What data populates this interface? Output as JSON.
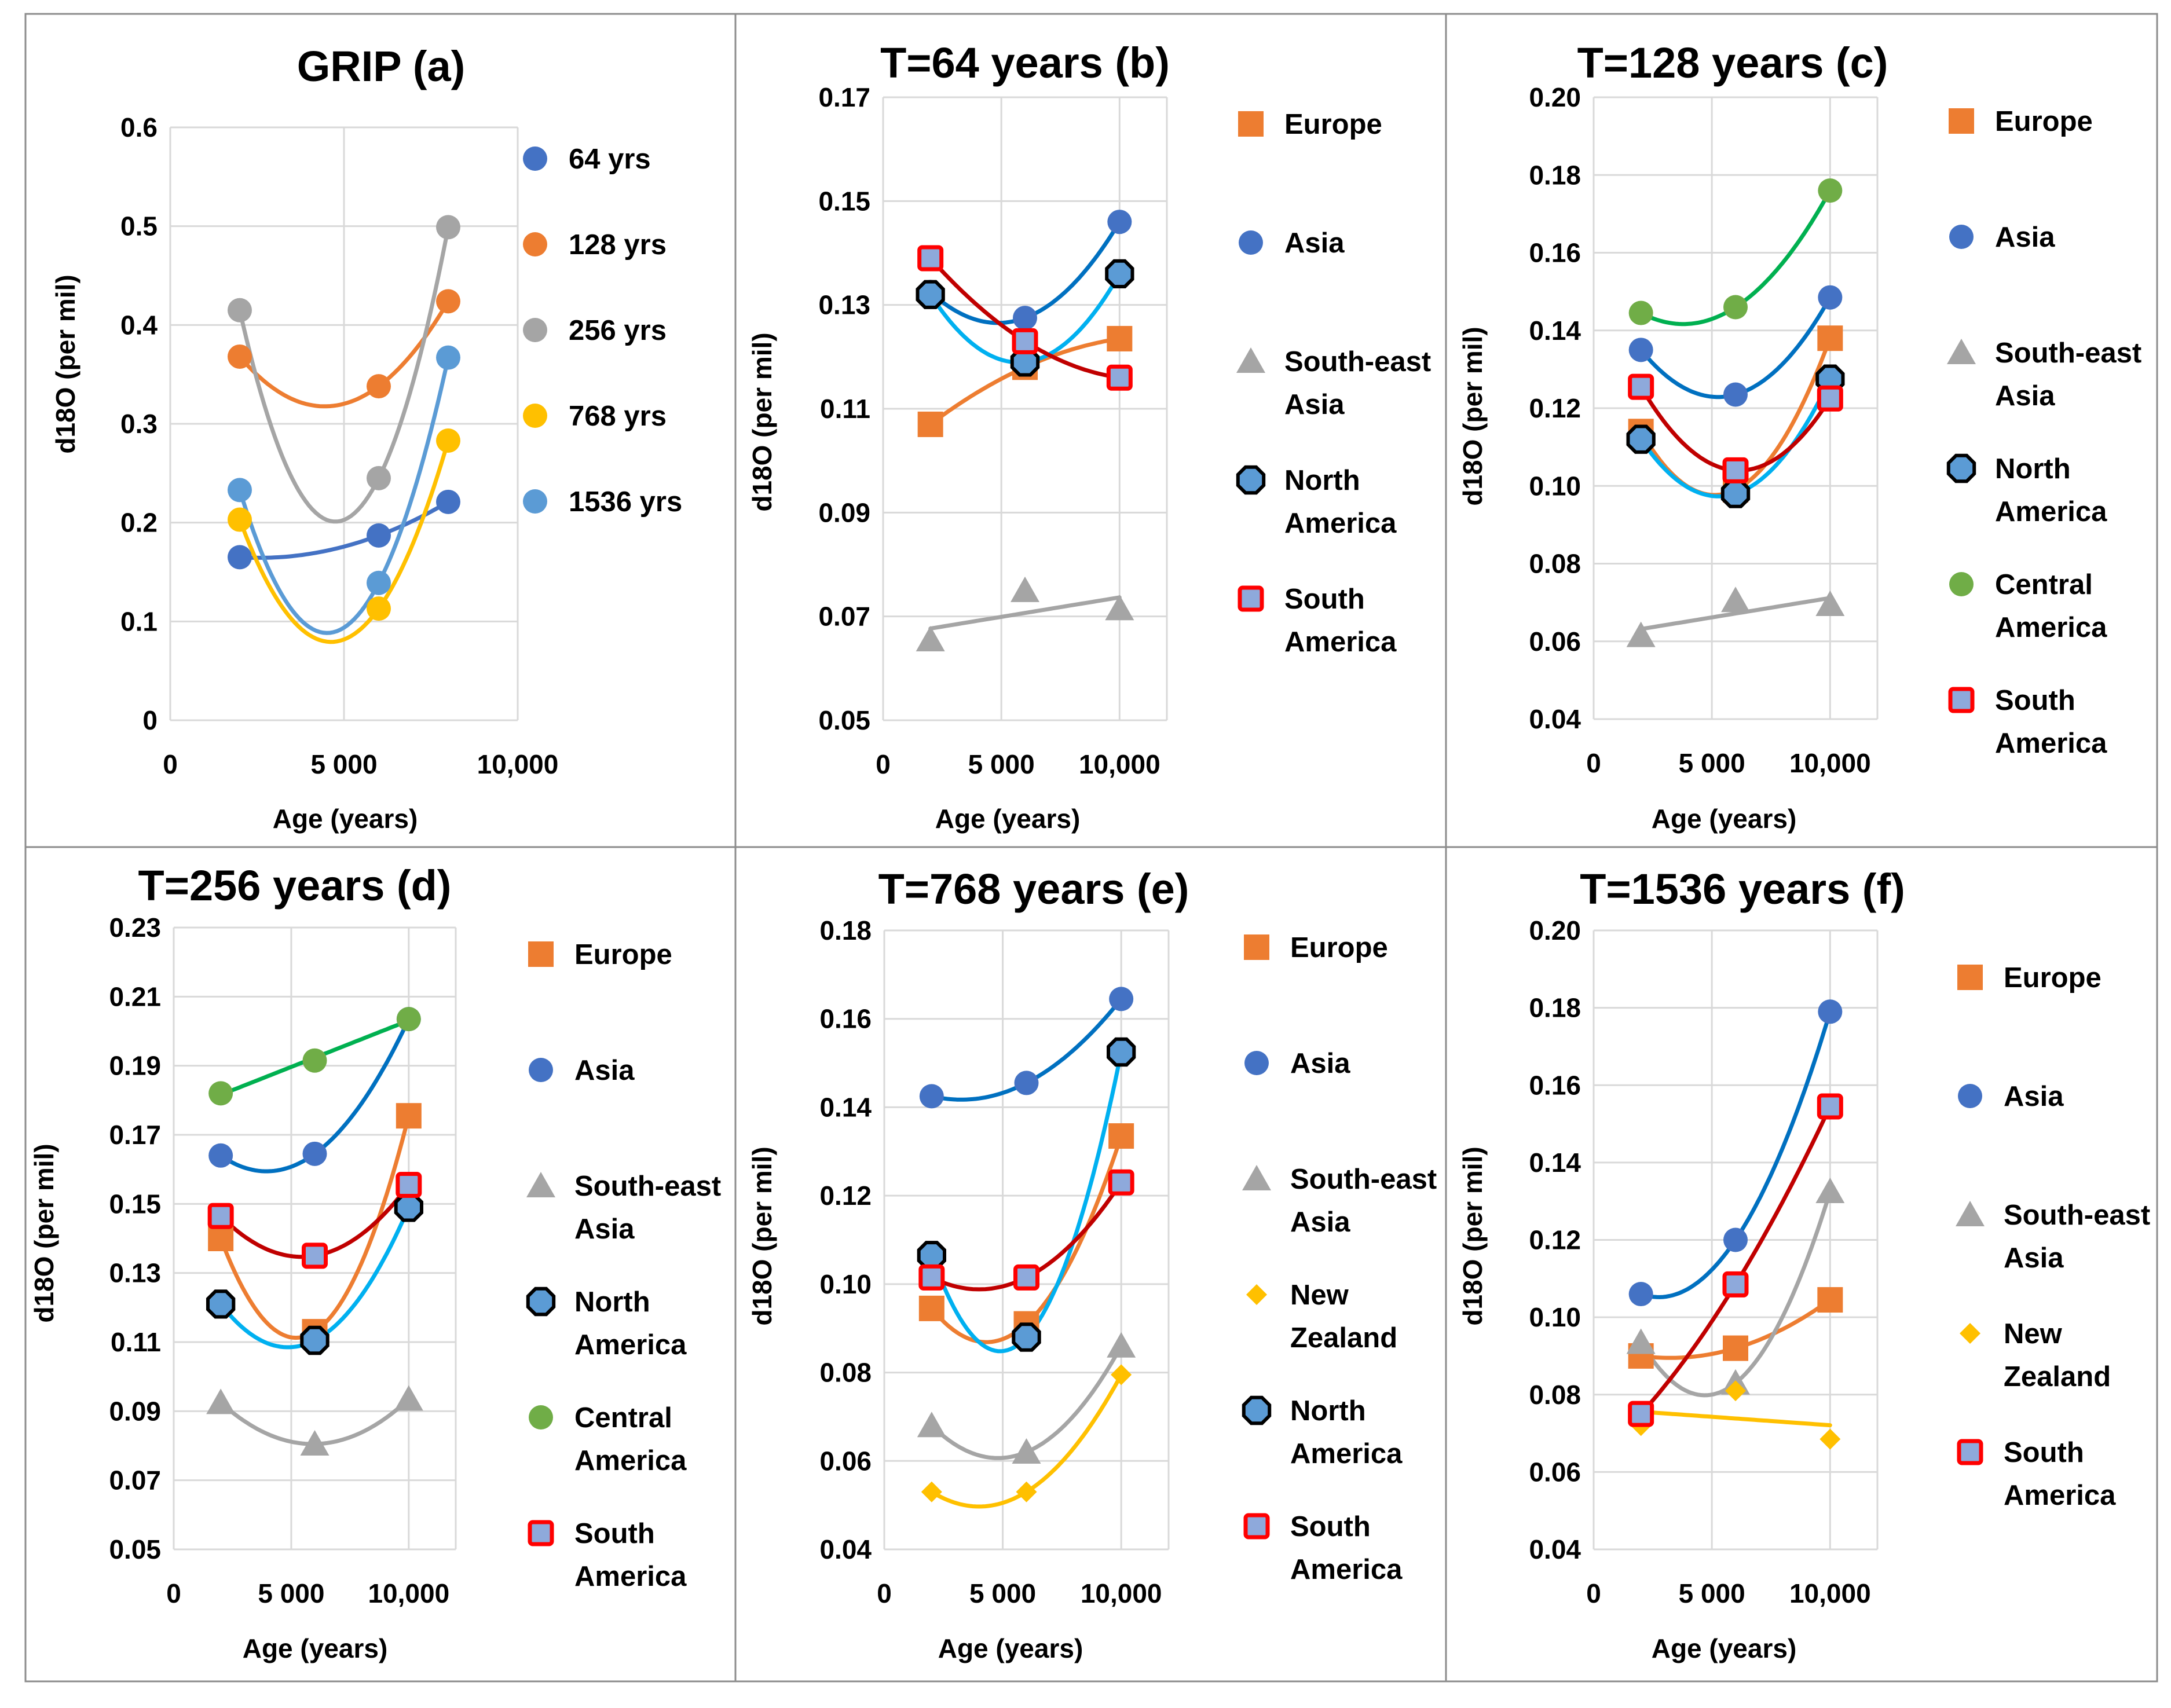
{
  "figure": {
    "colors": {
      "europe": "#ED7D31",
      "asia": "#4472C4",
      "southeast_asia": "#A5A5A5",
      "north_america_fill": "#5B9BD5",
      "north_america_edge": "#000000",
      "central_america": "#70AD47",
      "south_america_fill": "#8EA9DB",
      "south_america_edge": "#FF0000",
      "new_zealand": "#FFC000",
      "grip_64": "#4472C4",
      "grip_128": "#ED7D31",
      "grip_256": "#A5A5A5",
      "grip_768": "#FFC000",
      "grip_1536": "#5B9BD5",
      "trend_europe": "#ED7D31",
      "trend_asia": "#0070C0",
      "trend_sea": "#A5A5A5",
      "trend_na": "#00B0F0",
      "trend_ca": "#00B050",
      "trend_sa": "#C00000",
      "trend_nz": "#FFC000",
      "grid": "#D9D9D9",
      "border": "#8C8C8C"
    }
  },
  "chart_data": [
    {
      "id": "a",
      "type": "scatter",
      "title": "GRIP (a)",
      "xlabel": "Age (years)",
      "ylabel": "d18O (per mil)",
      "xlim": [
        0,
        10000
      ],
      "ylim": [
        0,
        0.6
      ],
      "xticks": [
        0,
        5000,
        10000
      ],
      "xtick_labels": [
        "0",
        "5 000",
        "10,000"
      ],
      "yticks": [
        0,
        0.1,
        0.2,
        0.3,
        0.4,
        0.5,
        0.6
      ],
      "ytick_labels": [
        "0",
        "0.1",
        "0.2",
        "0.3",
        "0.4",
        "0.5",
        "0.6"
      ],
      "series": [
        {
          "name": "64 yrs",
          "marker": "circle",
          "color": "#4472C4",
          "x": [
            2000,
            6000,
            8000
          ],
          "y": [
            0.165,
            0.187,
            0.221
          ],
          "trend": "poly2",
          "trend_color": "#4472C4"
        },
        {
          "name": "128 yrs",
          "marker": "circle",
          "color": "#ED7D31",
          "x": [
            2000,
            6000,
            8000
          ],
          "y": [
            0.368,
            0.338,
            0.424
          ],
          "trend": "poly2",
          "trend_color": "#ED7D31"
        },
        {
          "name": "256 yrs",
          "marker": "circle",
          "color": "#A5A5A5",
          "x": [
            2000,
            6000,
            8000
          ],
          "y": [
            0.415,
            0.245,
            0.499
          ],
          "trend": "poly2",
          "trend_color": "#A5A5A5"
        },
        {
          "name": "768 yrs",
          "marker": "circle",
          "color": "#FFC000",
          "x": [
            2000,
            6000,
            8000
          ],
          "y": [
            0.203,
            0.113,
            0.283
          ],
          "trend": "poly2",
          "trend_color": "#FFC000"
        },
        {
          "name": "1536 yrs",
          "marker": "circle",
          "color": "#5B9BD5",
          "x": [
            2000,
            6000,
            8000
          ],
          "y": [
            0.233,
            0.139,
            0.367
          ],
          "trend": "poly2",
          "trend_color": "#5B9BD5"
        }
      ]
    },
    {
      "id": "b",
      "type": "scatter",
      "title": "T=64 years (b)",
      "xlabel": "Age (years)",
      "ylabel": "d18O (per mil)",
      "xlim": [
        0,
        12000
      ],
      "ylim": [
        0.05,
        0.17
      ],
      "xticks": [
        0,
        5000,
        10000
      ],
      "xtick_labels": [
        "0",
        "5 000",
        "10,000"
      ],
      "yticks": [
        0.05,
        0.07,
        0.09,
        0.11,
        0.13,
        0.15,
        0.17
      ],
      "ytick_labels": [
        "0.05",
        "0.07",
        "0.09",
        "0.11",
        "0.13",
        "0.15",
        "0.17"
      ],
      "series": [
        {
          "name": "Europe",
          "marker": "square",
          "color": "#ED7D31",
          "x": [
            2000,
            6000,
            10000
          ],
          "y": [
            0.107,
            0.118,
            0.1235
          ],
          "trend": "poly2",
          "trend_color": "#ED7D31"
        },
        {
          "name": "Asia",
          "marker": "circle",
          "color": "#4472C4",
          "x": [
            2000,
            6000,
            10000
          ],
          "y": [
            0.1325,
            0.1275,
            0.146
          ],
          "trend": "poly2",
          "trend_color": "#0070C0"
        },
        {
          "name": "South-east Asia",
          "marker": "triangle",
          "color": "#A5A5A5",
          "x": [
            2000,
            6000,
            10000
          ],
          "y": [
            0.0655,
            0.075,
            0.0715
          ],
          "trend": "linear",
          "trend_color": "#A5A5A5"
        },
        {
          "name": "North America",
          "marker": "octagon",
          "color": "#5B9BD5",
          "x": [
            2000,
            6000,
            10000
          ],
          "y": [
            0.132,
            0.119,
            0.136
          ],
          "trend": "poly2",
          "trend_color": "#00B0F0"
        },
        {
          "name": "South America",
          "marker": "squareoutline",
          "color": "#8EA9DB",
          "x": [
            2000,
            6000,
            10000
          ],
          "y": [
            0.139,
            0.123,
            0.116
          ],
          "trend": "poly2",
          "trend_color": "#C00000"
        }
      ]
    },
    {
      "id": "c",
      "type": "scatter",
      "title": "T=128 years (c)",
      "xlabel": "Age (years)",
      "ylabel": "d18O (per mil)",
      "xlim": [
        0,
        12000
      ],
      "ylim": [
        0.04,
        0.2
      ],
      "xticks": [
        0,
        5000,
        10000
      ],
      "xtick_labels": [
        "0",
        "5 000",
        "10,000"
      ],
      "yticks": [
        0.04,
        0.06,
        0.08,
        0.1,
        0.12,
        0.14,
        0.16,
        0.18,
        0.2
      ],
      "ytick_labels": [
        "0.04",
        "0.06",
        "0.08",
        "0.10",
        "0.12",
        "0.14",
        "0.16",
        "0.18",
        "0.20"
      ],
      "series": [
        {
          "name": "Europe",
          "marker": "square",
          "color": "#ED7D31",
          "x": [
            2000,
            6000,
            10000
          ],
          "y": [
            0.114,
            0.099,
            0.138
          ],
          "trend": "poly2",
          "trend_color": "#ED7D31"
        },
        {
          "name": "Asia",
          "marker": "circle",
          "color": "#4472C4",
          "x": [
            2000,
            6000,
            10000
          ],
          "y": [
            0.135,
            0.1235,
            0.1485
          ],
          "trend": "poly2",
          "trend_color": "#0070C0"
        },
        {
          "name": "South-east Asia",
          "marker": "triangle",
          "color": "#A5A5A5",
          "x": [
            2000,
            6000,
            10000
          ],
          "y": [
            0.0615,
            0.0705,
            0.0695
          ],
          "trend": "linear",
          "trend_color": "#A5A5A5"
        },
        {
          "name": "North America",
          "marker": "octagon",
          "color": "#5B9BD5",
          "x": [
            2000,
            6000,
            10000
          ],
          "y": [
            0.112,
            0.098,
            0.1275
          ],
          "trend": "poly2",
          "trend_color": "#00B0F0"
        },
        {
          "name": "Central America",
          "marker": "circle",
          "color": "#70AD47",
          "x": [
            2000,
            6000,
            10000
          ],
          "y": [
            0.1445,
            0.146,
            0.176
          ],
          "trend": "poly2",
          "trend_color": "#00B050"
        },
        {
          "name": "South America",
          "marker": "squareoutline",
          "color": "#8EA9DB",
          "x": [
            2000,
            6000,
            10000
          ],
          "y": [
            0.1255,
            0.104,
            0.1225
          ],
          "trend": "poly2",
          "trend_color": "#C00000"
        }
      ]
    },
    {
      "id": "d",
      "type": "scatter",
      "title": "T=256 years (d)",
      "xlabel": "Age (years)",
      "ylabel": "d18O (per mil)",
      "xlim": [
        0,
        12000
      ],
      "ylim": [
        0.05,
        0.23
      ],
      "xticks": [
        0,
        5000,
        10000
      ],
      "xtick_labels": [
        "0",
        "5 000",
        "10,000"
      ],
      "yticks": [
        0.05,
        0.07,
        0.09,
        0.11,
        0.13,
        0.15,
        0.17,
        0.19,
        0.21,
        0.23
      ],
      "ytick_labels": [
        "0.05",
        "0.07",
        "0.09",
        "0.11",
        "0.13",
        "0.15",
        "0.17",
        "0.19",
        "0.21",
        "0.23"
      ],
      "series": [
        {
          "name": "Europe",
          "marker": "square",
          "color": "#ED7D31",
          "x": [
            2000,
            6000,
            10000
          ],
          "y": [
            0.14,
            0.113,
            0.1755
          ],
          "trend": "poly2",
          "trend_color": "#ED7D31"
        },
        {
          "name": "Asia",
          "marker": "circle",
          "color": "#4472C4",
          "x": [
            2000,
            6000,
            10000
          ],
          "y": [
            0.164,
            0.1645,
            0.2035
          ],
          "trend": "poly2",
          "trend_color": "#0070C0"
        },
        {
          "name": "South-east Asia",
          "marker": "triangle",
          "color": "#A5A5A5",
          "x": [
            2000,
            6000,
            10000
          ],
          "y": [
            0.0925,
            0.0805,
            0.0935
          ],
          "trend": "poly2",
          "trend_color": "#A5A5A5"
        },
        {
          "name": "North America",
          "marker": "octagon",
          "color": "#5B9BD5",
          "x": [
            2000,
            6000,
            10000
          ],
          "y": [
            0.121,
            0.1105,
            0.149
          ],
          "trend": "poly2",
          "trend_color": "#00B0F0"
        },
        {
          "name": "Central America",
          "marker": "circle",
          "color": "#70AD47",
          "x": [
            2000,
            6000,
            10000
          ],
          "y": [
            0.182,
            0.1915,
            0.2035
          ],
          "trend": "linear",
          "trend_color": "#00B050"
        },
        {
          "name": "South America",
          "marker": "squareoutline",
          "color": "#8EA9DB",
          "x": [
            2000,
            6000,
            10000
          ],
          "y": [
            0.1465,
            0.135,
            0.1555
          ],
          "trend": "poly2",
          "trend_color": "#C00000"
        }
      ]
    },
    {
      "id": "e",
      "type": "scatter",
      "title": "T=768 years (e)",
      "xlabel": "Age (years)",
      "ylabel": "d18O (per mil)",
      "xlim": [
        0,
        12000
      ],
      "ylim": [
        0.04,
        0.18
      ],
      "xticks": [
        0,
        5000,
        10000
      ],
      "xtick_labels": [
        "0",
        "5 000",
        "10,000"
      ],
      "yticks": [
        0.04,
        0.06,
        0.08,
        0.1,
        0.12,
        0.14,
        0.16,
        0.18
      ],
      "ytick_labels": [
        "0.04",
        "0.06",
        "0.08",
        "0.10",
        "0.12",
        "0.14",
        "0.16",
        "0.18"
      ],
      "series": [
        {
          "name": "Europe",
          "marker": "square",
          "color": "#ED7D31",
          "x": [
            2000,
            6000,
            10000
          ],
          "y": [
            0.0945,
            0.091,
            0.1335
          ],
          "trend": "poly2",
          "trend_color": "#ED7D31"
        },
        {
          "name": "Asia",
          "marker": "circle",
          "color": "#4472C4",
          "x": [
            2000,
            6000,
            10000
          ],
          "y": [
            0.1425,
            0.1455,
            0.1645
          ],
          "trend": "poly2",
          "trend_color": "#0070C0"
        },
        {
          "name": "South-east Asia",
          "marker": "triangle",
          "color": "#A5A5A5",
          "x": [
            2000,
            6000,
            10000
          ],
          "y": [
            0.068,
            0.062,
            0.086
          ],
          "trend": "poly2",
          "trend_color": "#A5A5A5"
        },
        {
          "name": "New Zealand",
          "marker": "diamond",
          "color": "#FFC000",
          "x": [
            2000,
            6000,
            10000
          ],
          "y": [
            0.053,
            0.053,
            0.0795
          ],
          "trend": "poly2",
          "trend_color": "#FFC000"
        },
        {
          "name": "North America",
          "marker": "octagon",
          "color": "#5B9BD5",
          "x": [
            2000,
            6000,
            10000
          ],
          "y": [
            0.1065,
            0.088,
            0.1525
          ],
          "trend": "poly2",
          "trend_color": "#00B0F0"
        },
        {
          "name": "South America",
          "marker": "squareoutline",
          "color": "#8EA9DB",
          "x": [
            2000,
            6000,
            10000
          ],
          "y": [
            0.1015,
            0.1015,
            0.123
          ],
          "trend": "poly2",
          "trend_color": "#C00000"
        }
      ]
    },
    {
      "id": "f",
      "type": "scatter",
      "title": "T=1536 years (f)",
      "xlabel": "Age (years)",
      "ylabel": "d18O (per mil)",
      "xlim": [
        0,
        12000
      ],
      "ylim": [
        0.04,
        0.2
      ],
      "xticks": [
        0,
        5000,
        10000
      ],
      "xtick_labels": [
        "0",
        "5 000",
        "10,000"
      ],
      "yticks": [
        0.04,
        0.06,
        0.08,
        0.1,
        0.12,
        0.14,
        0.16,
        0.18,
        0.2
      ],
      "ytick_labels": [
        "0.04",
        "0.06",
        "0.08",
        "0.10",
        "0.12",
        "0.14",
        "0.16",
        "0.18",
        "0.20"
      ],
      "series": [
        {
          "name": "Europe",
          "marker": "square",
          "color": "#ED7D31",
          "x": [
            2000,
            6000,
            10000
          ],
          "y": [
            0.09,
            0.092,
            0.1045
          ],
          "trend": "poly2",
          "trend_color": "#ED7D31"
        },
        {
          "name": "Asia",
          "marker": "circle",
          "color": "#4472C4",
          "x": [
            2000,
            6000,
            10000
          ],
          "y": [
            0.106,
            0.12,
            0.179
          ],
          "trend": "poly2",
          "trend_color": "#0070C0"
        },
        {
          "name": "South-east Asia",
          "marker": "triangle",
          "color": "#A5A5A5",
          "x": [
            2000,
            6000,
            10000
          ],
          "y": [
            0.0935,
            0.083,
            0.1325
          ],
          "trend": "poly2",
          "trend_color": "#A5A5A5"
        },
        {
          "name": "New Zealand",
          "marker": "diamond",
          "color": "#FFC000",
          "x": [
            2000,
            6000,
            10000
          ],
          "y": [
            0.072,
            0.081,
            0.0685
          ],
          "trend": "linear",
          "trend_color": "#FFC000"
        },
        {
          "name": "South America",
          "marker": "squareoutline",
          "color": "#8EA9DB",
          "x": [
            2000,
            6000,
            10000
          ],
          "y": [
            0.075,
            0.1085,
            0.1545
          ],
          "trend": "poly2",
          "trend_color": "#C00000"
        }
      ]
    }
  ]
}
